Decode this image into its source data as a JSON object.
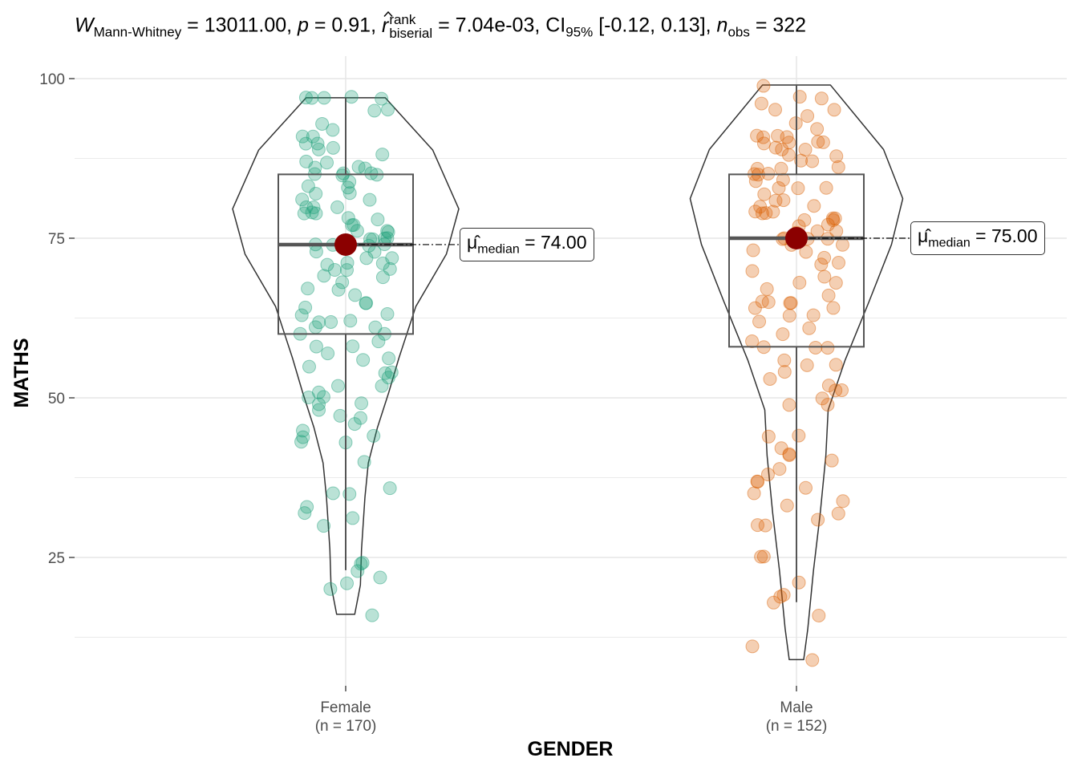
{
  "title": {
    "w_symbol": "W",
    "w_sub": "Mann-Whitney",
    "w_value": " = 13011.00, ",
    "p_symbol": "p",
    "p_value": " = 0.91, ",
    "r_symbol": "r",
    "r_sup": "rank",
    "r_sub": "biserial",
    "r_value": " = 7.04e-03, CI",
    "ci_sub": "95%",
    "ci_value": " [-0.12, 0.13], ",
    "n_symbol": "n",
    "n_sub": "obs",
    "n_value": " = 322"
  },
  "chart_data": {
    "type": "violin-box-scatter",
    "xlabel": "GENDER",
    "ylabel": "MATHS",
    "ylim": [
      5,
      102
    ],
    "yticks": [
      "25",
      "50",
      "75",
      "100"
    ],
    "grid": true,
    "categories": [
      {
        "name": "Female",
        "n_label": "(n = 170)",
        "color": "#1B9E77",
        "median": 74,
        "q1": 60,
        "q3": 85,
        "whisker_low": 23,
        "whisker_high": 97,
        "median_label": {
          "symbol": "μ̂",
          "sub": "median",
          "value": " = 74.00"
        },
        "violin": [
          [
            97,
            0.35
          ],
          [
            88.8,
            0.77
          ],
          [
            79.6,
            1.0
          ],
          [
            72.5,
            0.89
          ],
          [
            64.3,
            0.62
          ],
          [
            56.2,
            0.47
          ],
          [
            50.8,
            0.38
          ],
          [
            45.3,
            0.28
          ],
          [
            39.8,
            0.2
          ],
          [
            34.4,
            0.17
          ],
          [
            26.3,
            0.14
          ],
          [
            20.7,
            0.13
          ],
          [
            16.1,
            0.08
          ]
        ],
        "points": [
          97,
          97,
          97,
          97,
          97,
          95,
          95,
          93,
          92,
          91,
          91,
          90,
          90,
          89,
          89,
          88,
          87,
          87,
          86,
          86,
          86,
          85,
          85,
          85,
          85,
          85,
          84,
          83,
          83,
          82,
          82,
          81,
          81,
          80,
          80,
          80,
          79,
          79,
          79,
          78,
          78,
          77,
          77,
          76,
          76,
          76,
          75,
          75,
          75,
          75,
          74,
          74,
          74,
          74,
          74,
          73,
          73,
          72,
          72,
          71,
          71,
          71,
          70,
          70,
          70,
          69,
          69,
          68,
          67,
          67,
          66,
          65,
          65,
          64,
          63,
          63,
          62,
          62,
          62,
          61,
          61,
          60,
          60,
          59,
          58,
          58,
          57,
          56,
          56,
          55,
          54,
          54,
          53,
          52,
          52,
          51,
          50,
          50,
          49,
          49,
          48,
          47,
          47,
          46,
          45,
          44,
          44,
          43,
          43,
          40,
          36,
          35,
          35,
          33,
          32,
          31,
          30,
          24,
          24,
          23,
          22,
          21,
          20,
          16
        ]
      },
      {
        "name": "Male",
        "n_label": "(n = 152)",
        "color": "#D95F02",
        "median": 75,
        "q1": 58,
        "q3": 85,
        "whisker_low": 18,
        "whisker_high": 99,
        "median_label": {
          "symbol": "μ̂",
          "sub": "median",
          "value": " = 75.00"
        },
        "violin": [
          [
            99,
            0.3
          ],
          [
            88.9,
            0.77
          ],
          [
            81.2,
            0.94
          ],
          [
            74,
            0.84
          ],
          [
            65,
            0.64
          ],
          [
            55.9,
            0.43
          ],
          [
            48.1,
            0.28
          ],
          [
            41,
            0.26
          ],
          [
            31.9,
            0.21
          ],
          [
            22.9,
            0.15
          ],
          [
            13.8,
            0.1
          ],
          [
            9,
            0.064
          ]
        ],
        "points": [
          99,
          97,
          97,
          96,
          95,
          95,
          94,
          93,
          92,
          91,
          91,
          91,
          91,
          90,
          90,
          90,
          90,
          89,
          89,
          89,
          88,
          88,
          87,
          87,
          86,
          86,
          86,
          85,
          85,
          85,
          84,
          84,
          83,
          83,
          83,
          82,
          81,
          81,
          80,
          80,
          79,
          79,
          79,
          79,
          78,
          78,
          78,
          78,
          77,
          77,
          76,
          76,
          76,
          75,
          75,
          75,
          75,
          74,
          74,
          73,
          73,
          72,
          71,
          71,
          70,
          69,
          68,
          68,
          67,
          66,
          65,
          65,
          65,
          65,
          64,
          64,
          63,
          63,
          62,
          61,
          60,
          59,
          58,
          58,
          58,
          56,
          55,
          55,
          54,
          53,
          52,
          51,
          51,
          50,
          49,
          49,
          44,
          44,
          42,
          41,
          41,
          40,
          39,
          38,
          37,
          37,
          36,
          35,
          34,
          33,
          32,
          31,
          30,
          30,
          25,
          25,
          21,
          19,
          19,
          18,
          16,
          11,
          9
        ]
      }
    ],
    "median_point_color": "#8B0000"
  }
}
